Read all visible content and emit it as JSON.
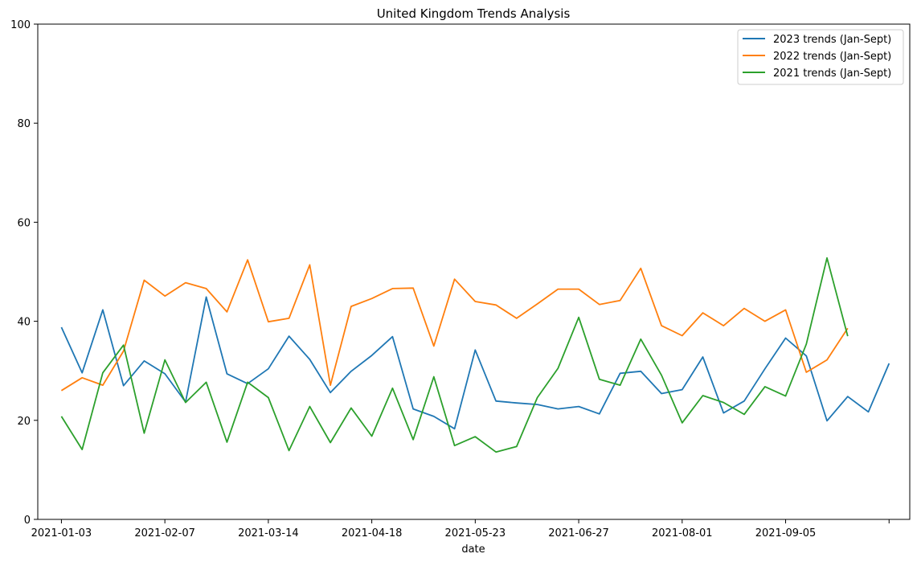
{
  "chart_data": {
    "type": "line",
    "title": "United Kingdom Trends Analysis",
    "xlabel": "date",
    "ylabel": "",
    "ylim": [
      0,
      100
    ],
    "yticks": [
      0,
      20,
      40,
      60,
      80,
      100
    ],
    "x_start": "2021-01-03",
    "x_step_days": 7,
    "xticks": [
      "2021-01-03",
      "2021-02-07",
      "2021-03-14",
      "2021-04-18",
      "2021-05-23",
      "2021-06-27",
      "2021-08-01",
      "2021-09-05",
      ""
    ],
    "xtick_dates": [
      "2021-01-03",
      "2021-02-07",
      "2021-03-14",
      "2021-04-18",
      "2021-05-23",
      "2021-06-27",
      "2021-08-01",
      "2021-09-05",
      "2021-10-10"
    ],
    "xlim": [
      "2020-12-26",
      "2021-10-17"
    ],
    "grid": false,
    "legend_position": "top-right",
    "series": [
      {
        "name": "2023 trends (Jan-Sept)",
        "color": "#1f77b4",
        "values": [
          38.8,
          29.6,
          42.3,
          27.0,
          32.0,
          29.4,
          23.7,
          44.9,
          29.4,
          27.4,
          30.4,
          37.0,
          32.3,
          25.6,
          29.9,
          33.1,
          36.9,
          22.3,
          20.8,
          18.3,
          34.2,
          23.9,
          23.5,
          23.2,
          22.3,
          22.8,
          21.3,
          29.5,
          29.9,
          25.4,
          26.2,
          32.8,
          21.5,
          23.9,
          30.4,
          36.6,
          33.0,
          19.9,
          24.8,
          21.7,
          31.5
        ]
      },
      {
        "name": "2022 trends (Jan-Sept)",
        "color": "#ff7f0e",
        "values": [
          26.0,
          28.6,
          27.1,
          34.0,
          48.3,
          45.1,
          47.8,
          46.6,
          41.9,
          52.4,
          39.9,
          40.6,
          51.4,
          27.1,
          43.0,
          44.6,
          46.6,
          46.7,
          35.0,
          48.5,
          44.0,
          43.3,
          40.6,
          43.5,
          46.5,
          46.5,
          43.4,
          44.2,
          50.7,
          39.1,
          37.1,
          41.7,
          39.1,
          42.6,
          40.0,
          42.3,
          29.7,
          32.2,
          38.6
        ]
      },
      {
        "name": "2021 trends (Jan-Sept)",
        "color": "#2ca02c",
        "values": [
          20.8,
          14.1,
          29.6,
          35.2,
          17.4,
          32.2,
          23.6,
          27.7,
          15.6,
          27.7,
          24.6,
          13.9,
          22.8,
          15.5,
          22.5,
          16.8,
          26.5,
          16.1,
          28.8,
          14.9,
          16.7,
          13.6,
          14.7,
          24.6,
          30.5,
          40.8,
          28.3,
          27.1,
          36.4,
          29.1,
          19.5,
          25.0,
          23.6,
          21.2,
          26.8,
          24.9,
          35.4,
          52.8,
          37.0
        ]
      }
    ]
  }
}
